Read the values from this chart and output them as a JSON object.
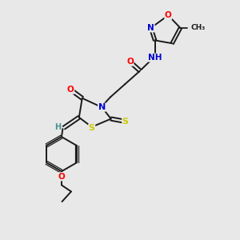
{
  "bg_color": "#e8e8e8",
  "bond_color": "#1a1a1a",
  "atom_colors": {
    "O": "#ff0000",
    "N": "#0000cc",
    "S": "#cccc00",
    "H": "#4a9090",
    "C": "#1a1a1a"
  },
  "figsize": [
    3.0,
    3.0
  ],
  "dpi": 100
}
